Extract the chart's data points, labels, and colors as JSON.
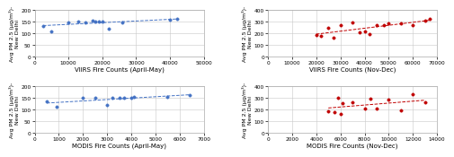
{
  "panel_tl": {
    "x": [
      2500,
      5000,
      10000,
      13000,
      15000,
      17000,
      18000,
      19000,
      20000,
      22000,
      26000,
      40000,
      42000
    ],
    "y": [
      133,
      110,
      148,
      150,
      148,
      155,
      152,
      150,
      152,
      120,
      148,
      158,
      160
    ],
    "xlabel": "VIIRS Fire Counts (April-May)",
    "ylabel": "Avg PM 2.5 (μg/m³)-\nNew Delhi",
    "xlim": [
      0,
      50000
    ],
    "ylim": [
      0,
      200
    ],
    "xticks": [
      0,
      10000,
      20000,
      30000,
      40000,
      50000
    ],
    "yticks": [
      0,
      50,
      100,
      150,
      200
    ],
    "color": "#4472c4",
    "trend_color": "#4472c4"
  },
  "panel_tr": {
    "x": [
      20000,
      22000,
      25000,
      27000,
      30000,
      35000,
      38000,
      40000,
      42000,
      45000,
      48000,
      50000,
      55000,
      60000,
      65000,
      67000
    ],
    "y": [
      185,
      175,
      250,
      160,
      270,
      290,
      210,
      220,
      195,
      270,
      270,
      285,
      285,
      270,
      310,
      325
    ],
    "xlabel": "VIIRS Fire Counts (Nov-Dec)",
    "ylabel": "Avg PM 2.5 (μg/m³)-\nNew Delhi",
    "xlim": [
      0,
      70000
    ],
    "ylim": [
      0,
      400
    ],
    "xticks": [
      0,
      10000,
      20000,
      30000,
      40000,
      50000,
      60000,
      70000
    ],
    "yticks": [
      0,
      100,
      200,
      300,
      400
    ],
    "color": "#c00000",
    "trend_color": "#c00000"
  },
  "panel_bl": {
    "x": [
      500,
      900,
      2000,
      2500,
      3000,
      3200,
      3500,
      3700,
      4000,
      4100,
      5500,
      6400
    ],
    "y": [
      133,
      110,
      148,
      150,
      118,
      148,
      150,
      148,
      150,
      152,
      152,
      160
    ],
    "xlabel": "MODIS Fire Counts (April-May)",
    "ylabel": "Avg PM 2.5 (μg/m³)-\nNew Delhi",
    "xlim": [
      0,
      7000
    ],
    "ylim": [
      0,
      200
    ],
    "xticks": [
      0,
      1000,
      2000,
      3000,
      4000,
      5000,
      6000,
      7000
    ],
    "yticks": [
      0,
      50,
      100,
      150,
      200
    ],
    "color": "#4472c4",
    "trend_color": "#4472c4"
  },
  "panel_br": {
    "x": [
      5000,
      5500,
      5800,
      6000,
      6200,
      7000,
      8000,
      8500,
      9000,
      10000,
      11000,
      12000,
      13000
    ],
    "y": [
      185,
      175,
      300,
      160,
      250,
      260,
      210,
      290,
      210,
      280,
      190,
      325,
      260
    ],
    "xlabel": "MODIS Fire Counts (Nov-Dec)",
    "ylabel": "Avg PM 2.5 (μg/m³)-\nNew Delhi",
    "xlim": [
      0,
      14000
    ],
    "ylim": [
      0,
      400
    ],
    "xticks": [
      0,
      2000,
      4000,
      6000,
      8000,
      10000,
      12000,
      14000
    ],
    "yticks": [
      0,
      100,
      200,
      300,
      400
    ],
    "color": "#c00000",
    "trend_color": "#c00000"
  },
  "background_color": "#ffffff",
  "grid_color": "#c8c8c8",
  "marker_size": 6,
  "linewidth": 0.7,
  "ylabel_fontsize": 4.5,
  "xlabel_fontsize": 5.0,
  "tick_fontsize": 4.2
}
